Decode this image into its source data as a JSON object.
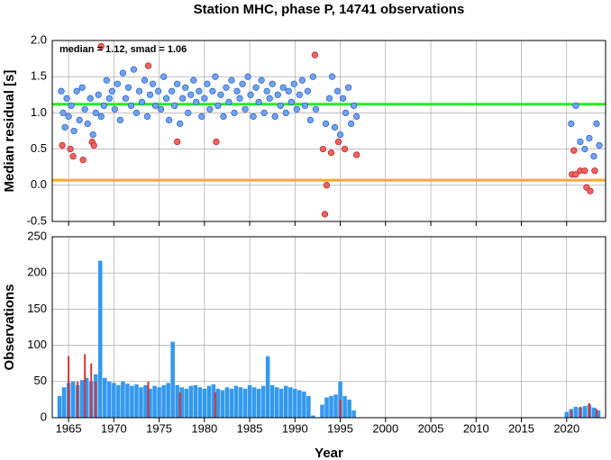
{
  "chart_data": [
    {
      "type": "scatter",
      "title": "Station MHC, phase P, 14741 observations",
      "annotation": "median = 1.12, smad = 1.06",
      "ylabel": "Median residual [s]",
      "xlim": [
        1963.2,
        2024.3
      ],
      "xticks": [
        1965,
        1970,
        1975,
        1980,
        1985,
        1990,
        1995,
        2000,
        2005,
        2010,
        2015,
        2020
      ],
      "ylim": [
        -0.5,
        2.0
      ],
      "yticks": [
        -0.5,
        {
          "value": 0,
          "label": "0.0"
        },
        0.5,
        {
          "value": 1,
          "label": "1.0"
        },
        1.5,
        {
          "value": 2,
          "label": "2.0"
        }
      ],
      "grid": true,
      "hlines": [
        {
          "value": 1.12,
          "color": "#22ee22"
        },
        {
          "value": 0.07,
          "color": "#ffaa22"
        }
      ],
      "series": [
        {
          "color": "#6fa3f0",
          "x": [
            1964.2,
            1964.4,
            1964.6,
            1964.8,
            1965.0,
            1965.3,
            1965.6,
            1965.9,
            1966.2,
            1966.5,
            1966.8,
            1967.1,
            1967.4,
            1967.7,
            1968.0,
            1968.3,
            1968.6,
            1968.9,
            1969.2,
            1969.5,
            1969.8,
            1970.1,
            1970.4,
            1970.7,
            1971.0,
            1971.3,
            1971.6,
            1971.9,
            1972.2,
            1972.5,
            1972.8,
            1973.1,
            1973.4,
            1973.7,
            1974.0,
            1974.3,
            1974.6,
            1974.9,
            1975.2,
            1975.5,
            1975.8,
            1976.1,
            1976.4,
            1976.7,
            1977.0,
            1977.3,
            1977.6,
            1977.9,
            1978.2,
            1978.5,
            1978.8,
            1979.1,
            1979.4,
            1979.7,
            1980.0,
            1980.3,
            1980.6,
            1980.9,
            1981.2,
            1981.5,
            1981.8,
            1982.1,
            1982.4,
            1982.7,
            1983.0,
            1983.3,
            1983.6,
            1983.9,
            1984.2,
            1984.5,
            1984.8,
            1985.1,
            1985.4,
            1985.7,
            1986.0,
            1986.3,
            1986.6,
            1986.9,
            1987.2,
            1987.5,
            1987.8,
            1988.1,
            1988.4,
            1988.7,
            1989.0,
            1989.3,
            1989.6,
            1989.9,
            1990.2,
            1990.5,
            1990.8,
            1991.1,
            1991.4,
            1991.7,
            1992.0,
            1992.3,
            1993.4,
            1993.8,
            1994.1,
            1994.4,
            1994.7,
            1995.0,
            1995.3,
            1995.6,
            1995.9,
            1996.2,
            1996.5,
            1996.8,
            2020.5,
            2021.0,
            2021.5,
            2022.0,
            2022.5,
            2023.0,
            2023.3,
            2023.6
          ],
          "values": [
            1.3,
            1.0,
            0.8,
            1.2,
            0.95,
            1.1,
            0.75,
            1.3,
            0.9,
            1.35,
            1.05,
            0.85,
            1.2,
            0.7,
            1.0,
            1.25,
            0.95,
            1.1,
            1.45,
            1.2,
            1.3,
            1.05,
            1.4,
            0.9,
            1.55,
            1.2,
            1.35,
            1.1,
            1.6,
            1.0,
            1.3,
            1.15,
            1.45,
            0.95,
            1.25,
            1.4,
            1.1,
            1.3,
            1.05,
            1.5,
            1.2,
            0.9,
            1.3,
            1.1,
            1.4,
            0.85,
            1.2,
            1.35,
            1.0,
            1.25,
            1.45,
            1.15,
            1.3,
            0.95,
            1.2,
            1.4,
            1.05,
            1.3,
            1.5,
            1.1,
            1.25,
            0.95,
            1.35,
            1.15,
            1.45,
            1.0,
            1.3,
            1.2,
            1.4,
            1.05,
            1.5,
            1.25,
            0.95,
            1.35,
            1.15,
            1.45,
            1.0,
            1.3,
            1.2,
            1.4,
            0.95,
            1.25,
            1.1,
            1.35,
            1.0,
            1.3,
            1.15,
            1.4,
            1.05,
            1.25,
            1.45,
            1.1,
            1.3,
            0.9,
            1.5,
            1.05,
            0.85,
            1.2,
            1.5,
            0.8,
            1.3,
            0.7,
            1.2,
            1.0,
            1.35,
            0.85,
            1.1,
            0.95,
            0.85,
            1.1,
            0.6,
            0.5,
            0.65,
            0.4,
            0.85,
            0.55
          ]
        },
        {
          "color": "#f06262",
          "x": [
            1964.3,
            1965.2,
            1965.5,
            1966.6,
            1967.6,
            1967.8,
            1968.6,
            1973.8,
            1977.0,
            1981.3,
            1992.2,
            1993.1,
            1993.3,
            1993.5,
            1994.0,
            1994.8,
            1995.5,
            1996.8,
            2020.6,
            2020.8,
            2021.0,
            2021.5,
            2022.0,
            2022.2,
            2022.6,
            2023.1
          ],
          "values": [
            0.55,
            0.5,
            0.4,
            0.35,
            0.6,
            0.55,
            1.92,
            1.65,
            0.6,
            0.6,
            1.8,
            0.5,
            -0.4,
            0.0,
            0.45,
            0.6,
            0.5,
            0.42,
            0.15,
            0.48,
            0.15,
            0.2,
            0.2,
            -0.03,
            -0.08,
            0.2
          ]
        }
      ]
    },
    {
      "type": "bar",
      "ylabel": "Observations",
      "xlabel": "Year",
      "xlim": [
        1963.2,
        2024.3
      ],
      "xticks": [
        1965,
        1970,
        1975,
        1980,
        1985,
        1990,
        1995,
        2000,
        2005,
        2010,
        2015,
        2020
      ],
      "ylim": [
        0,
        250
      ],
      "yticks": [
        0,
        50,
        100,
        150,
        200,
        250
      ],
      "grid": true,
      "series": [
        {
          "color": "#3399ee",
          "x": [
            1964.0,
            1964.5,
            1965.0,
            1965.5,
            1966.0,
            1966.5,
            1967.0,
            1967.5,
            1968.0,
            1968.5,
            1969.0,
            1969.5,
            1970.0,
            1970.5,
            1971.0,
            1971.5,
            1972.0,
            1972.5,
            1973.0,
            1973.5,
            1974.0,
            1974.5,
            1975.0,
            1975.5,
            1976.0,
            1976.5,
            1977.0,
            1977.5,
            1978.0,
            1978.5,
            1979.0,
            1979.5,
            1980.0,
            1980.5,
            1981.0,
            1981.5,
            1982.0,
            1982.5,
            1983.0,
            1983.5,
            1984.0,
            1984.5,
            1985.0,
            1985.5,
            1986.0,
            1986.5,
            1987.0,
            1987.5,
            1988.0,
            1988.5,
            1989.0,
            1989.5,
            1990.0,
            1990.5,
            1991.0,
            1991.5,
            1992.0,
            1992.5,
            1993.0,
            1993.5,
            1994.0,
            1994.5,
            1995.0,
            1995.5,
            1996.0,
            1996.5,
            2020.0,
            2020.5,
            2021.0,
            2021.5,
            2022.0,
            2022.5,
            2023.0,
            2023.5
          ],
          "values": [
            30,
            42,
            48,
            50,
            45,
            52,
            55,
            50,
            60,
            217,
            55,
            50,
            48,
            45,
            50,
            47,
            44,
            46,
            42,
            45,
            40,
            44,
            42,
            45,
            48,
            105,
            45,
            42,
            40,
            44,
            45,
            42,
            40,
            44,
            46,
            40,
            38,
            42,
            40,
            44,
            42,
            40,
            45,
            42,
            40,
            44,
            85,
            45,
            42,
            40,
            44,
            42,
            40,
            38,
            36,
            30,
            3,
            0,
            18,
            28,
            30,
            32,
            50,
            30,
            25,
            10,
            8,
            12,
            15,
            14,
            16,
            18,
            14,
            10
          ]
        },
        {
          "color": "#e03030",
          "x": [
            1965.0,
            1966.0,
            1966.8,
            1967.5,
            1968.0,
            1973.8,
            1977.3,
            1981.2,
            1995.0,
            2020.5,
            2021.5,
            2022.5,
            2023.3
          ],
          "values": [
            85,
            50,
            88,
            75,
            50,
            50,
            35,
            35,
            25,
            10,
            15,
            20,
            12
          ]
        }
      ]
    }
  ]
}
